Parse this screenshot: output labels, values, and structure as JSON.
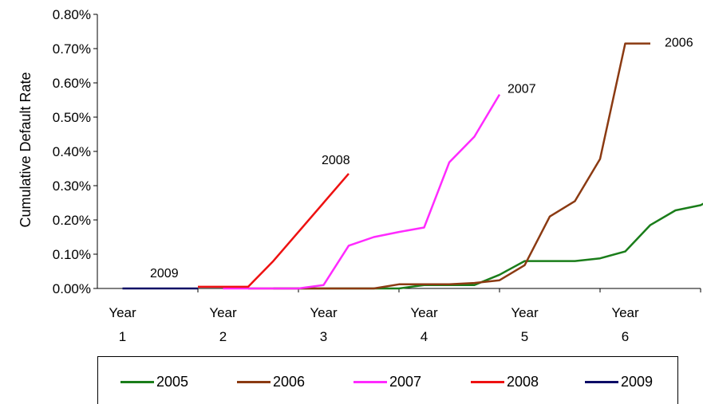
{
  "chart_data": {
    "type": "line",
    "title": "",
    "xlabel": "",
    "ylabel": "Cumulative Default Rate",
    "ylim": [
      0,
      0.8
    ],
    "xlim": [
      0,
      6
    ],
    "y_ticks": [
      "0.00%",
      "0.10%",
      "0.20%",
      "0.30%",
      "0.40%",
      "0.50%",
      "0.60%",
      "0.70%",
      "0.80%"
    ],
    "x_tick_labels": [
      {
        "top": "Year",
        "bottom": "1"
      },
      {
        "top": "Year",
        "bottom": "2"
      },
      {
        "top": "Year",
        "bottom": "3"
      },
      {
        "top": "Year",
        "bottom": "4"
      },
      {
        "top": "Year",
        "bottom": "5"
      },
      {
        "top": "Year",
        "bottom": "6"
      }
    ],
    "grid": false,
    "legend_position": "bottom",
    "series": [
      {
        "name": "2005",
        "label": "2005",
        "color": "#1a7d1a",
        "x": [
          1.5,
          1.75,
          2.0,
          2.25,
          2.5,
          2.75,
          3.0,
          3.25,
          3.5,
          3.75,
          4.0,
          4.25,
          4.5,
          4.75,
          5.0,
          5.25,
          5.5,
          5.75,
          6.0
        ],
        "y": [
          0.0,
          0.0,
          0.0,
          0.0,
          0.0,
          0.0,
          0.01,
          0.01,
          0.01,
          0.04,
          0.08,
          0.08,
          0.08,
          0.088,
          0.108,
          0.185,
          0.228,
          0.243,
          0.283
        ]
      },
      {
        "name": "2006",
        "label": "2006",
        "color": "#8b3a12",
        "x": [
          1.25,
          1.5,
          1.75,
          2.0,
          2.25,
          2.5,
          2.75,
          3.0,
          3.25,
          3.5,
          3.75,
          4.0,
          4.25,
          4.5,
          4.75,
          5.0,
          5.25
        ],
        "y": [
          0.0,
          0.0,
          0.0,
          0.0,
          0.0,
          0.0,
          0.012,
          0.012,
          0.012,
          0.016,
          0.024,
          0.068,
          0.21,
          0.255,
          0.378,
          0.715,
          0.715
        ],
        "label_at": [
          5.25,
          0.715
        ]
      },
      {
        "name": "2007",
        "label": "2007",
        "color": "#ff2aff",
        "x": [
          1.0,
          1.25,
          1.5,
          1.75,
          2.0,
          2.25,
          2.5,
          2.75,
          3.0,
          3.25,
          3.5,
          3.75
        ],
        "y": [
          0.0,
          0.0,
          0.0,
          0.0,
          0.01,
          0.125,
          0.15,
          0.165,
          0.178,
          0.368,
          0.443,
          0.566
        ]
      },
      {
        "name": "2008",
        "label": "2008",
        "color": "#ee1111",
        "x": [
          0.75,
          1.0,
          1.25,
          1.5,
          1.75,
          2.0,
          2.25
        ],
        "y": [
          0.005,
          0.005,
          0.005,
          0.08,
          0.165,
          0.25,
          0.335
        ]
      },
      {
        "name": "2009",
        "label": "2009",
        "color": "#0d0d66",
        "x": [
          0.0,
          0.25,
          0.5,
          0.75
        ],
        "y": [
          0.0,
          0.0,
          0.0,
          0.0
        ]
      }
    ]
  }
}
